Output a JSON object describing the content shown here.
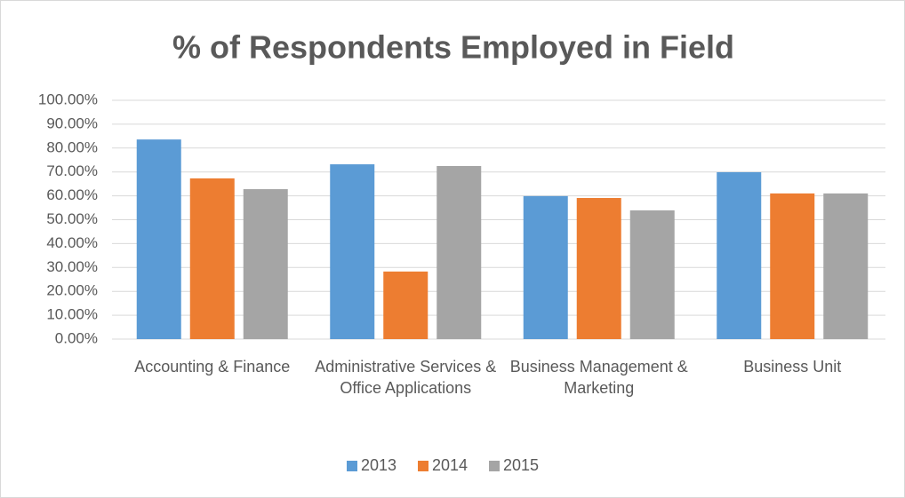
{
  "chart_data": {
    "type": "bar",
    "title": "% of Respondents Employed in Field",
    "categories": [
      "Accounting & Finance",
      "Administrative Services & Office Applications",
      "Business Management & Marketing",
      "Business Unit"
    ],
    "series": [
      {
        "name": "2013",
        "color": "#5b9bd5",
        "values": [
          83.6,
          73.2,
          59.9,
          69.9
        ]
      },
      {
        "name": "2014",
        "color": "#ed7d31",
        "values": [
          67.3,
          28.3,
          59.1,
          61.0
        ]
      },
      {
        "name": "2015",
        "color": "#a5a5a5",
        "values": [
          62.8,
          72.5,
          53.9,
          61.0
        ]
      }
    ],
    "ylim": [
      0,
      100
    ],
    "yticks": [
      {
        "value": 0,
        "label": "0.00%"
      },
      {
        "value": 10,
        "label": "10.00%"
      },
      {
        "value": 20,
        "label": "20.00%"
      },
      {
        "value": 30,
        "label": "30.00%"
      },
      {
        "value": 40,
        "label": "40.00%"
      },
      {
        "value": 50,
        "label": "50.00%"
      },
      {
        "value": 60,
        "label": "60.00%"
      },
      {
        "value": 70,
        "label": "70.00%"
      },
      {
        "value": 80,
        "label": "80.00%"
      },
      {
        "value": 90,
        "label": "90.00%"
      },
      {
        "value": 100,
        "label": "100.00%"
      }
    ],
    "grid": true,
    "legend": "bottom"
  }
}
